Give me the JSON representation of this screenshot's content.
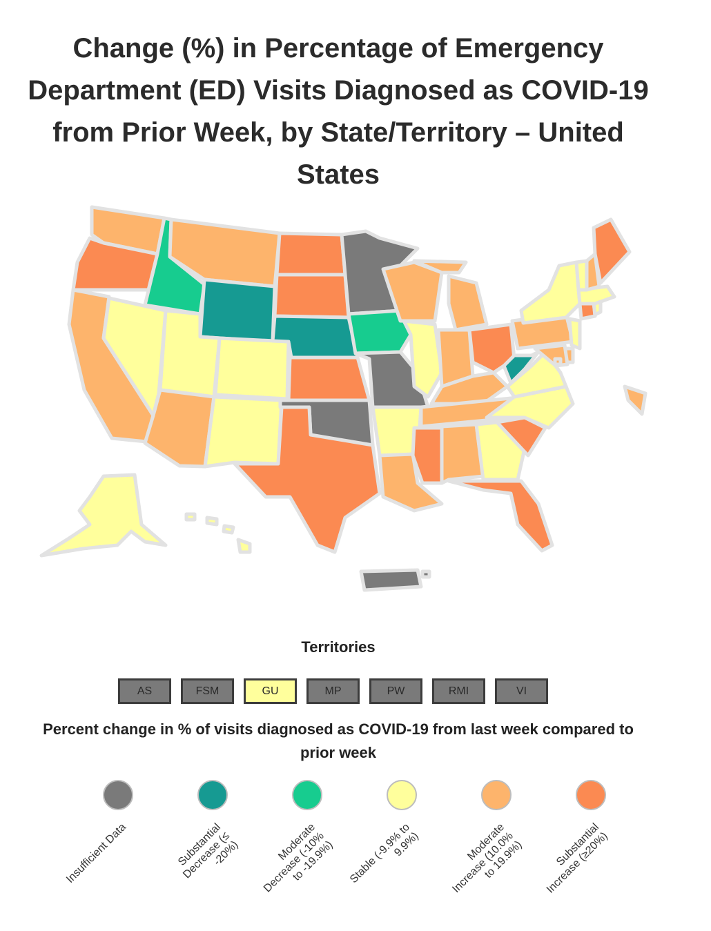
{
  "title": "Change (%) in Percentage of Emergency Department (ED) Visits Diagnosed as COVID-19 from Prior Week, by State/Territory – United States",
  "colors": {
    "insufficient": "#7a7a7a",
    "substantial_decrease": "#169a92",
    "moderate_decrease": "#17cc8f",
    "stable": "#ffff9c",
    "moderate_increase": "#fdb46c",
    "substantial_increase": "#fb8a52",
    "border": "#e2e2e2"
  },
  "territories": {
    "heading": "Territories",
    "items": [
      {
        "label": "AS",
        "category": "insufficient"
      },
      {
        "label": "FSM",
        "category": "insufficient"
      },
      {
        "label": "GU",
        "category": "stable"
      },
      {
        "label": "MP",
        "category": "insufficient"
      },
      {
        "label": "PW",
        "category": "insufficient"
      },
      {
        "label": "RMI",
        "category": "insufficient"
      },
      {
        "label": "VI",
        "category": "insufficient"
      }
    ]
  },
  "legend": {
    "title": "Percent change in % of visits diagnosed as COVID-19 from last week compared to prior week",
    "items": [
      {
        "key": "insufficient",
        "label": "Insufficient Data"
      },
      {
        "key": "substantial_decrease",
        "label": "Substantial\nDecrease (≤\n-20%)"
      },
      {
        "key": "moderate_decrease",
        "label": "Moderate\nDecrease (-10%\nto -19.9%)"
      },
      {
        "key": "stable",
        "label": "Stable (-9.9% to\n9.9%)"
      },
      {
        "key": "moderate_increase",
        "label": "Moderate\nIncrease (10.0%\nto 19.9%)"
      },
      {
        "key": "substantial_increase",
        "label": "Substantial\nIncrease (≥20%)"
      }
    ]
  },
  "states": {
    "WA": "moderate_increase",
    "OR": "substantial_increase",
    "CA": "moderate_increase",
    "ID": "moderate_decrease",
    "NV": "stable",
    "MT": "moderate_increase",
    "WY": "substantial_decrease",
    "UT": "stable",
    "AZ": "moderate_increase",
    "CO": "stable",
    "NM": "stable",
    "ND": "substantial_increase",
    "SD": "substantial_increase",
    "NE": "substantial_decrease",
    "KS": "substantial_increase",
    "OK": "insufficient",
    "TX": "substantial_increase",
    "MN": "insufficient",
    "IA": "moderate_decrease",
    "MO": "insufficient",
    "AR": "stable",
    "LA": "moderate_increase",
    "WI": "moderate_increase",
    "IL": "stable",
    "MI": "moderate_increase",
    "IN": "moderate_increase",
    "OH": "substantial_increase",
    "KY": "moderate_increase",
    "TN": "moderate_increase",
    "MS": "substantial_increase",
    "AL": "moderate_increase",
    "GA": "stable",
    "FL": "substantial_increase",
    "SC": "substantial_increase",
    "NC": "stable",
    "VA": "stable",
    "WV": "substantial_decrease",
    "PA": "moderate_increase",
    "NY": "stable",
    "VT": "stable",
    "NH": "moderate_increase",
    "ME": "substantial_increase",
    "MA": "stable",
    "CT": "substantial_increase",
    "RI": "stable",
    "NJ": "stable",
    "DE": "moderate_increase",
    "MD": "moderate_increase",
    "DC": "moderate_increase",
    "AK": "stable",
    "HI": "stable",
    "PR": "insufficient"
  }
}
